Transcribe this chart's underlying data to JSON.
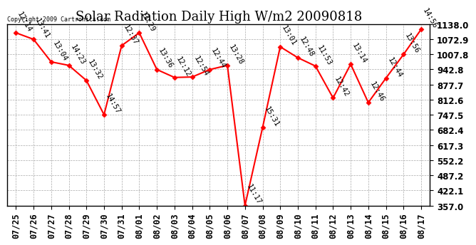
{
  "title": "Solar Radiation Daily High W/m2 20090818",
  "copyright": "Copyright 2009 Cartronics.com",
  "dates": [
    "07/25",
    "07/26",
    "07/27",
    "07/28",
    "07/29",
    "07/30",
    "07/31",
    "08/01",
    "08/02",
    "08/03",
    "08/04",
    "08/05",
    "08/06",
    "08/07",
    "08/08",
    "08/09",
    "08/10",
    "08/11",
    "08/12",
    "08/13",
    "08/14",
    "08/15",
    "08/16",
    "08/17"
  ],
  "values": [
    1100,
    1072,
    975,
    960,
    895,
    748,
    1045,
    1100,
    942,
    908,
    910,
    942,
    960,
    357,
    693,
    1040,
    993,
    957,
    820,
    965,
    800,
    905,
    1007,
    1115
  ],
  "times": [
    "12:14",
    "13:41",
    "13:04",
    "14:23",
    "13:32",
    "14:57",
    "12:37",
    "13:29",
    "13:36",
    "12:12",
    "12:54",
    "12:44",
    "13:28",
    "11:17",
    "15:31",
    "13:01",
    "12:48",
    "11:53",
    "12:42",
    "13:14",
    "12:46",
    "12:44",
    "13:56",
    "14:56"
  ],
  "line_color": "#ff0000",
  "marker_color": "#ff0000",
  "bg_color": "#ffffff",
  "plot_bg_color": "#ffffff",
  "grid_color": "#aaaaaa",
  "text_color": "#000000",
  "ylim": [
    357.0,
    1138.0
  ],
  "yticks": [
    357.0,
    422.1,
    487.2,
    552.2,
    617.3,
    682.4,
    747.5,
    812.6,
    877.7,
    942.8,
    1007.8,
    1072.9,
    1138.0
  ],
  "title_fontsize": 13,
  "tick_fontsize": 8.5,
  "annotation_fontsize": 7.5
}
